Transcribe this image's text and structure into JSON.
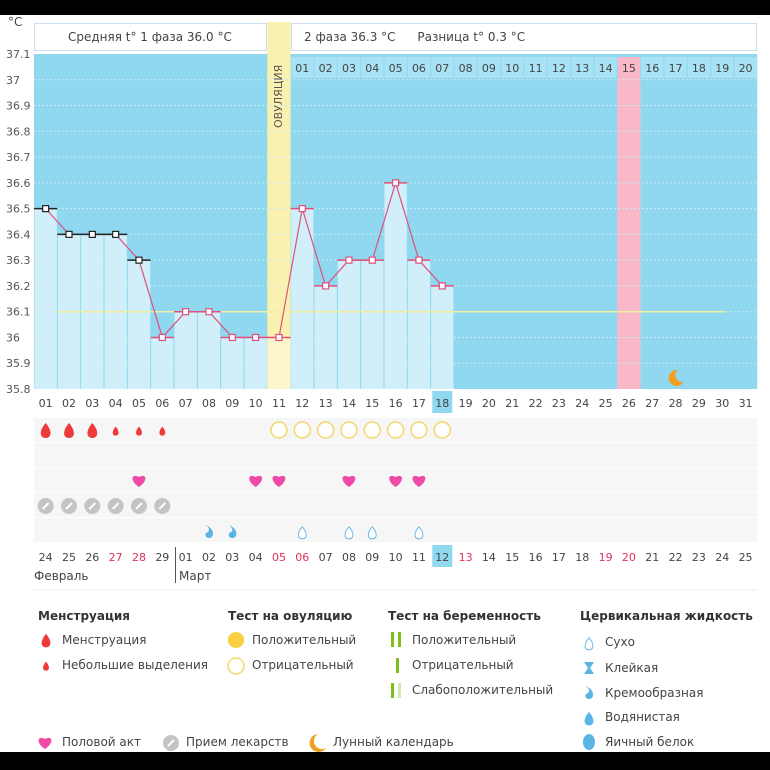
{
  "header": {
    "unit": "°C",
    "phase1_label": "Средняя t° 1 фаза 36.0 °C",
    "phase2_label": "2 фаза 36.3 °C",
    "difference_label": "Разница t° 0.3 °C",
    "ovulation_label": "ОВУЛЯЦИЯ"
  },
  "chart_data": {
    "type": "bar",
    "ylim": [
      35.8,
      37.1
    ],
    "yticks": [
      "37.1",
      "37",
      "36.9",
      "36.8",
      "36.7",
      "36.6",
      "36.5",
      "36.4",
      "36.3",
      "36.2",
      "36.1",
      "36",
      "35.9",
      "35.8"
    ],
    "cycle_days": [
      "01",
      "02",
      "03",
      "04",
      "05",
      "06",
      "07",
      "08",
      "09",
      "10",
      "11",
      "12",
      "13",
      "14",
      "15",
      "16",
      "17",
      "18",
      "19",
      "20",
      "21",
      "22",
      "23",
      "24",
      "25",
      "26",
      "27",
      "28",
      "29",
      "30",
      "31"
    ],
    "temperatures": [
      36.5,
      36.4,
      36.4,
      36.4,
      36.3,
      36.0,
      36.1,
      36.1,
      36.0,
      36.0,
      36.0,
      36.5,
      36.2,
      36.3,
      36.3,
      36.6,
      36.3,
      36.2
    ],
    "coverline": 36.1,
    "ovulation_day": 11,
    "current_day": 18,
    "highlight_day": 26,
    "post_ovulation_days": [
      "01",
      "02",
      "03",
      "04",
      "05",
      "06",
      "07",
      "08",
      "09",
      "10",
      "11",
      "12",
      "13",
      "14",
      "15",
      "16",
      "17",
      "18",
      "19",
      "20"
    ],
    "highlight_post_day": "15",
    "moon_day": 28,
    "colors": {
      "bg": "#8fd8f0",
      "bar": "#d0effa",
      "line": "#e0507a",
      "ovulation": "#faf0b0",
      "highlight": "#f8b8c8",
      "coverline": "#f0f0a0"
    }
  },
  "markers": {
    "menstruation_heavy": [
      1,
      2,
      3
    ],
    "menstruation_light": [
      4,
      5,
      6
    ],
    "ovulation_negative": [
      11,
      12,
      13,
      14,
      15,
      16,
      17,
      18
    ],
    "intercourse": [
      5,
      10,
      11,
      14,
      16,
      17
    ],
    "medication": [
      1,
      2,
      3,
      4,
      5,
      6
    ],
    "cervical_creamy": [
      8,
      9
    ],
    "cervical_dry": [
      12,
      14,
      15,
      17
    ]
  },
  "calendar": {
    "dates": [
      "24",
      "25",
      "26",
      "27",
      "28",
      "29",
      "01",
      "02",
      "03",
      "04",
      "05",
      "06",
      "07",
      "08",
      "09",
      "10",
      "11",
      "12",
      "13",
      "14",
      "15",
      "16",
      "17",
      "18",
      "19",
      "20",
      "21",
      "22",
      "23",
      "24",
      "25"
    ],
    "weekend_indices": [
      3,
      4,
      10,
      11,
      18,
      24,
      25
    ],
    "today_index": 17,
    "month1": "Февраль",
    "month2": "Март"
  },
  "legend": {
    "menstruation": {
      "title": "Менструация",
      "items": [
        "Менструация",
        "Небольшие выделения"
      ]
    },
    "ovulation_test": {
      "title": "Тест на овуляцию",
      "items": [
        "Положительный",
        "Отрицательный"
      ]
    },
    "pregnancy_test": {
      "title": "Тест на беременность",
      "items": [
        "Положительный",
        "Отрицательный",
        "Слабоположительный"
      ]
    },
    "cervical": {
      "title": "Цервикальная жидкость",
      "items": [
        "Сухо",
        "Клейкая",
        "Кремообразная",
        "Водянистая",
        "Яичный белок"
      ]
    },
    "other": [
      "Половой акт",
      "Прием лекарств",
      "Лунный календарь"
    ]
  }
}
